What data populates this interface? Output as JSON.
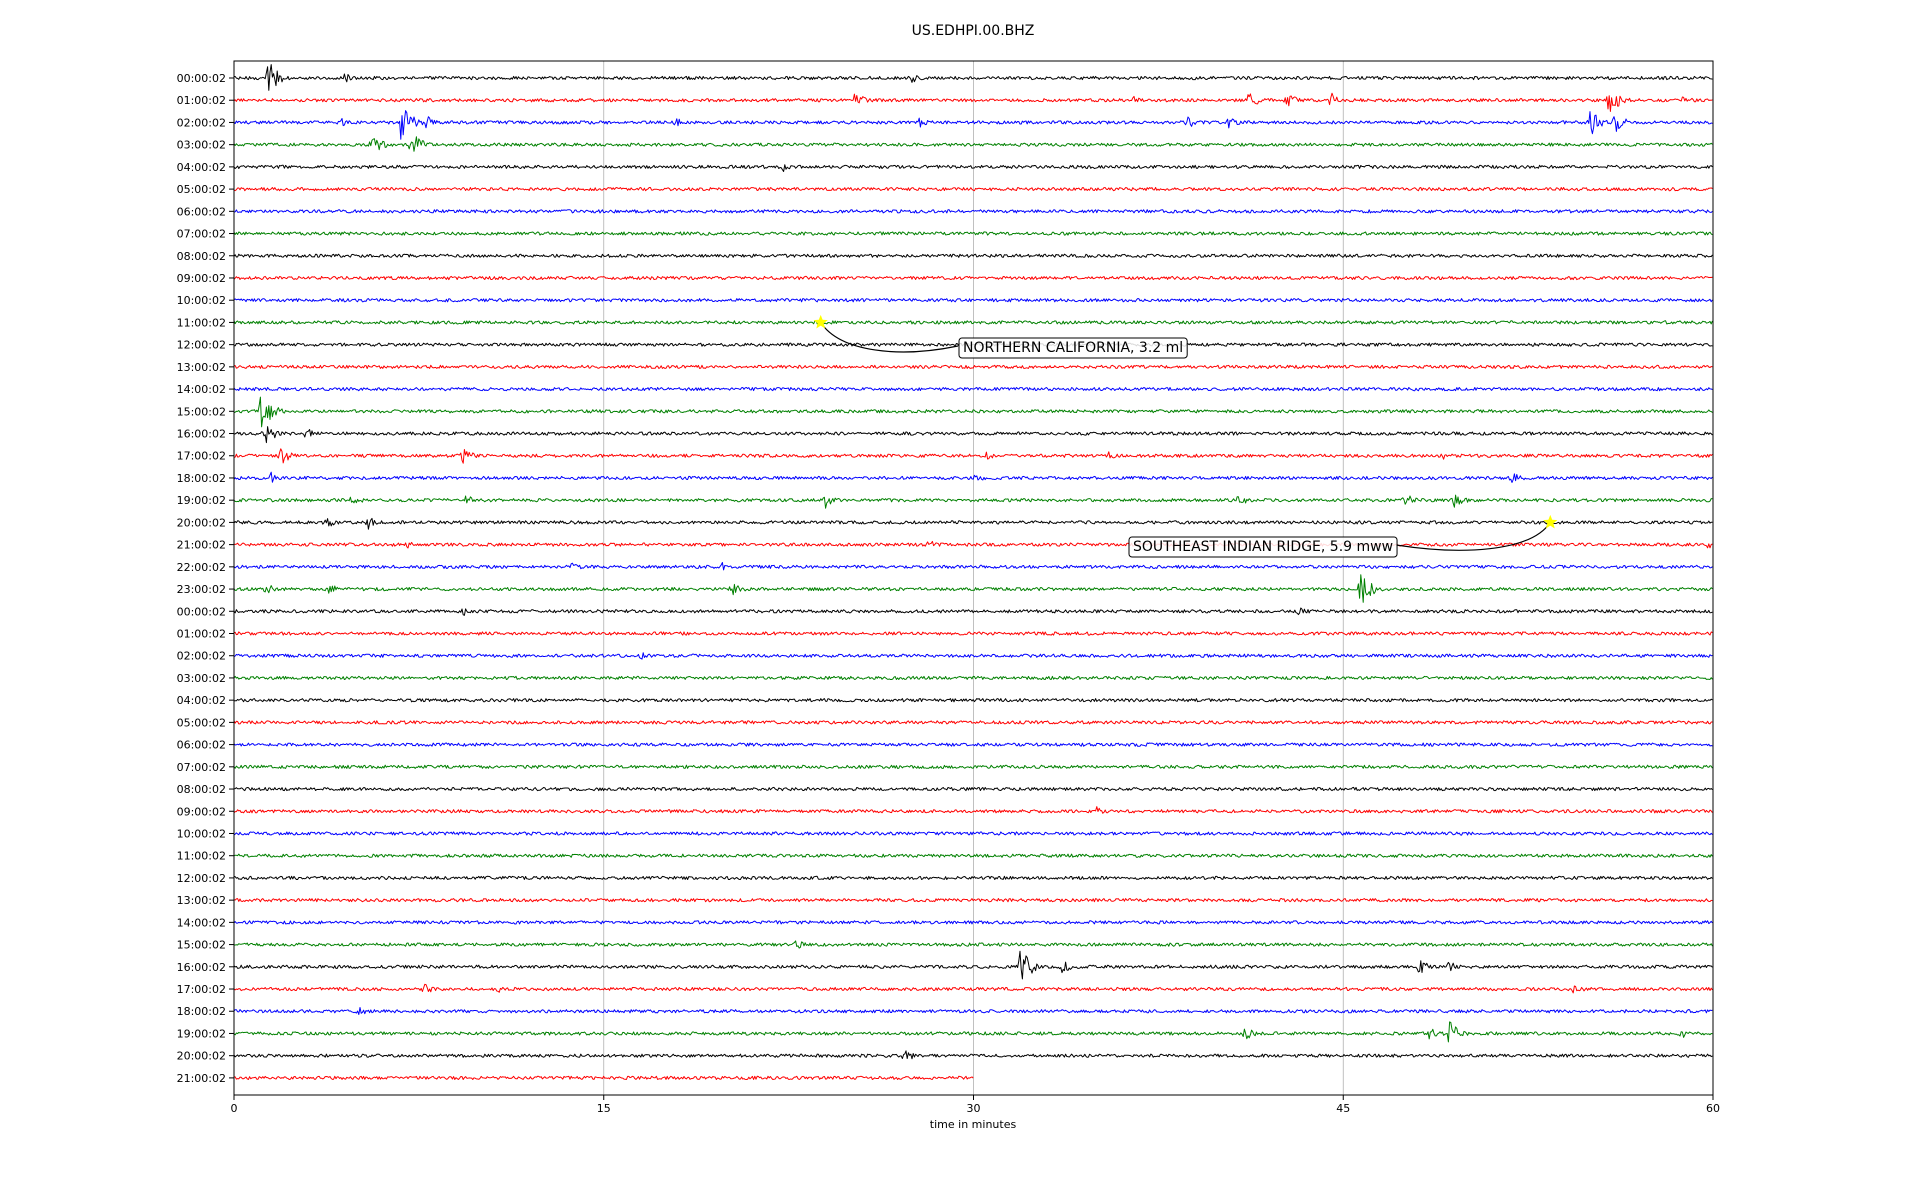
{
  "chart_data": {
    "type": "line",
    "title": "US.EDHPI.00.BHZ",
    "xlabel": "time in minutes",
    "ylabel": "",
    "xlim": [
      0,
      60
    ],
    "xticks": [
      "0",
      "15",
      "30",
      "45",
      "60"
    ],
    "grid": "vertical",
    "legend": "none",
    "trace_colors": [
      "#000000",
      "#ff0000",
      "#0000ff",
      "#008000"
    ],
    "row_labels": [
      "00:00:02",
      "01:00:02",
      "02:00:02",
      "03:00:02",
      "04:00:02",
      "05:00:02",
      "06:00:02",
      "07:00:02",
      "08:00:02",
      "09:00:02",
      "10:00:02",
      "11:00:02",
      "12:00:02",
      "13:00:02",
      "14:00:02",
      "15:00:02",
      "16:00:02",
      "17:00:02",
      "18:00:02",
      "19:00:02",
      "20:00:02",
      "21:00:02",
      "22:00:02",
      "23:00:02",
      "00:00:02",
      "01:00:02",
      "02:00:02",
      "03:00:02",
      "04:00:02",
      "05:00:02",
      "06:00:02",
      "07:00:02",
      "08:00:02",
      "09:00:02",
      "10:00:02",
      "11:00:02",
      "12:00:02",
      "13:00:02",
      "14:00:02",
      "15:00:02",
      "16:00:02",
      "17:00:02",
      "18:00:02",
      "19:00:02",
      "20:00:02",
      "21:00:02"
    ],
    "last_row_end_minute": 30,
    "events": [
      {
        "label": "NORTHERN CALIFORNIA, 3.2 ml",
        "row": 11,
        "minute": 23.8,
        "marker": "star",
        "marker_color": "#ffff00"
      },
      {
        "label": "SOUTHEAST INDIAN RIDGE, 5.9 mww",
        "row": 20,
        "minute": 53.4,
        "marker": "star",
        "marker_color": "#ffff00"
      }
    ],
    "bursts": [
      {
        "row": 0,
        "minute": 1.4,
        "amp": 18
      },
      {
        "row": 0,
        "minute": 4.5,
        "amp": 6
      },
      {
        "row": 0,
        "minute": 27.5,
        "amp": 5
      },
      {
        "row": 1,
        "minute": 25.2,
        "amp": 8
      },
      {
        "row": 1,
        "minute": 36.5,
        "amp": 5
      },
      {
        "row": 1,
        "minute": 41.2,
        "amp": 10
      },
      {
        "row": 1,
        "minute": 42.7,
        "amp": 9
      },
      {
        "row": 1,
        "minute": 44.5,
        "amp": 8
      },
      {
        "row": 1,
        "minute": 55.8,
        "amp": 16
      },
      {
        "row": 1,
        "minute": 58.8,
        "amp": 6
      },
      {
        "row": 2,
        "minute": 4.3,
        "amp": 5
      },
      {
        "row": 2,
        "minute": 6.8,
        "amp": 22
      },
      {
        "row": 2,
        "minute": 7.8,
        "amp": 10
      },
      {
        "row": 2,
        "minute": 17.9,
        "amp": 5
      },
      {
        "row": 2,
        "minute": 27.8,
        "amp": 7
      },
      {
        "row": 2,
        "minute": 38.7,
        "amp": 8
      },
      {
        "row": 2,
        "minute": 40.3,
        "amp": 7
      },
      {
        "row": 2,
        "minute": 55.0,
        "amp": 16
      },
      {
        "row": 2,
        "minute": 56.0,
        "amp": 12
      },
      {
        "row": 3,
        "minute": 5.6,
        "amp": 12
      },
      {
        "row": 3,
        "minute": 7.2,
        "amp": 14
      },
      {
        "row": 4,
        "minute": 22.3,
        "amp": 5
      },
      {
        "row": 11,
        "minute": 23.6,
        "amp": 4
      },
      {
        "row": 15,
        "minute": 1.1,
        "amp": 28
      },
      {
        "row": 16,
        "minute": 1.2,
        "amp": 14
      },
      {
        "row": 16,
        "minute": 2.9,
        "amp": 7
      },
      {
        "row": 17,
        "minute": 1.9,
        "amp": 10
      },
      {
        "row": 17,
        "minute": 9.3,
        "amp": 9
      },
      {
        "row": 17,
        "minute": 30.5,
        "amp": 5
      },
      {
        "row": 17,
        "minute": 35.5,
        "amp": 5
      },
      {
        "row": 17,
        "minute": 49.0,
        "amp": 5
      },
      {
        "row": 18,
        "minute": 1.5,
        "amp": 6
      },
      {
        "row": 18,
        "minute": 30.1,
        "amp": 5
      },
      {
        "row": 18,
        "minute": 51.8,
        "amp": 7
      },
      {
        "row": 19,
        "minute": 4.8,
        "amp": 7
      },
      {
        "row": 19,
        "minute": 9.4,
        "amp": 6
      },
      {
        "row": 19,
        "minute": 24.0,
        "amp": 8
      },
      {
        "row": 19,
        "minute": 40.7,
        "amp": 7
      },
      {
        "row": 19,
        "minute": 47.5,
        "amp": 9
      },
      {
        "row": 19,
        "minute": 49.5,
        "amp": 10
      },
      {
        "row": 20,
        "minute": 3.7,
        "amp": 7
      },
      {
        "row": 20,
        "minute": 5.4,
        "amp": 8
      },
      {
        "row": 21,
        "minute": 7.0,
        "amp": 4
      },
      {
        "row": 21,
        "minute": 28.2,
        "amp": 5
      },
      {
        "row": 21,
        "minute": 59.8,
        "amp": 4
      },
      {
        "row": 22,
        "minute": 13.7,
        "amp": 5
      },
      {
        "row": 22,
        "minute": 19.8,
        "amp": 5
      },
      {
        "row": 23,
        "minute": 1.2,
        "amp": 8
      },
      {
        "row": 23,
        "minute": 3.9,
        "amp": 8
      },
      {
        "row": 23,
        "minute": 20.2,
        "amp": 8
      },
      {
        "row": 23,
        "minute": 45.7,
        "amp": 20
      },
      {
        "row": 24,
        "minute": 9.3,
        "amp": 5
      },
      {
        "row": 24,
        "minute": 43.2,
        "amp": 5
      },
      {
        "row": 26,
        "minute": 16.5,
        "amp": 5
      },
      {
        "row": 33,
        "minute": 35.0,
        "amp": 5
      },
      {
        "row": 39,
        "minute": 22.8,
        "amp": 5
      },
      {
        "row": 40,
        "minute": 31.9,
        "amp": 22
      },
      {
        "row": 40,
        "minute": 33.6,
        "amp": 8
      },
      {
        "row": 40,
        "minute": 48.1,
        "amp": 8
      },
      {
        "row": 40,
        "minute": 49.3,
        "amp": 6
      },
      {
        "row": 41,
        "minute": 7.7,
        "amp": 6
      },
      {
        "row": 41,
        "minute": 10.7,
        "amp": 6
      },
      {
        "row": 41,
        "minute": 54.3,
        "amp": 7
      },
      {
        "row": 42,
        "minute": 5.0,
        "amp": 6
      },
      {
        "row": 43,
        "minute": 41.0,
        "amp": 7
      },
      {
        "row": 43,
        "minute": 48.5,
        "amp": 8
      },
      {
        "row": 43,
        "minute": 49.3,
        "amp": 14
      },
      {
        "row": 43,
        "minute": 58.7,
        "amp": 6
      },
      {
        "row": 44,
        "minute": 27.2,
        "amp": 7
      }
    ]
  }
}
